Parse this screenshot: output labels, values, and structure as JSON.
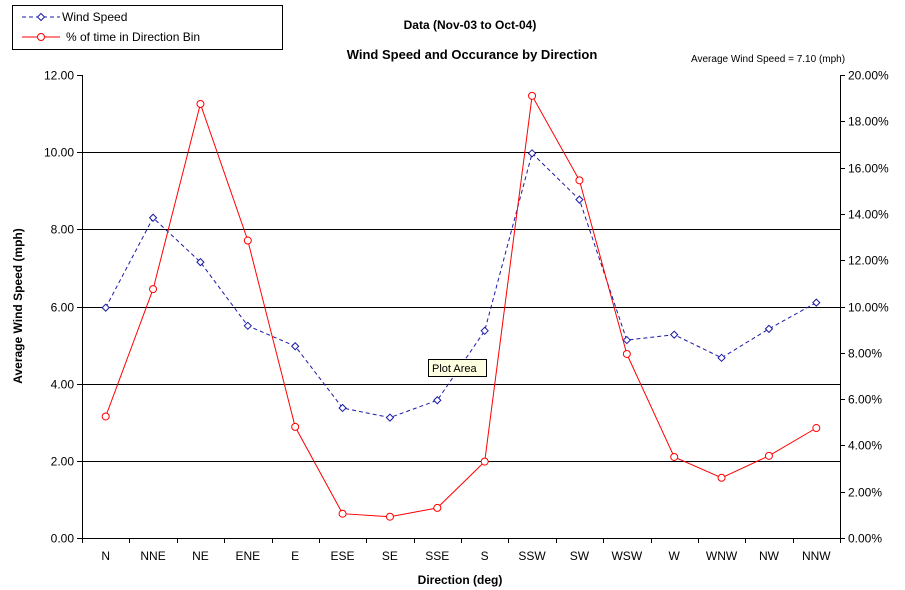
{
  "chart_data": {
    "type": "line",
    "title": "Wind Speed and Occurance by Direction",
    "subtitle": "Data (Nov-03 to Oct-04)",
    "annotation": "Average Wind Speed = 7.10 (mph)",
    "tooltip": "Plot Area",
    "xlabel": "Direction (deg)",
    "ylabel": "Average Wind Speed (mph)",
    "categories": [
      "N",
      "NNE",
      "NE",
      "ENE",
      "E",
      "ESE",
      "SE",
      "SSE",
      "S",
      "SSW",
      "SW",
      "WSW",
      "W",
      "WNW",
      "NW",
      "NNW"
    ],
    "ylim": [
      0,
      12
    ],
    "y_ticks": [
      "0.00",
      "2.00",
      "4.00",
      "6.00",
      "8.00",
      "10.00",
      "12.00"
    ],
    "y2lim": [
      0,
      20
    ],
    "y2_ticks": [
      "0.00%",
      "2.00%",
      "4.00%",
      "6.00%",
      "8.00%",
      "10.00%",
      "12.00%",
      "14.00%",
      "16.00%",
      "18.00%",
      "20.00%"
    ],
    "grid": true,
    "legend_position": "top-left",
    "series": [
      {
        "name": "Wind Speed",
        "axis": "left",
        "color": "#1a1aa6",
        "line_style": "dashed",
        "marker": "diamond",
        "values": [
          5.97,
          8.3,
          7.15,
          5.5,
          4.97,
          3.37,
          3.12,
          3.57,
          5.37,
          9.97,
          8.77,
          5.13,
          5.27,
          4.67,
          5.42,
          6.1
        ]
      },
      {
        "name": "% of time in Direction Bin",
        "axis": "right",
        "color": "#ff0000",
        "line_style": "solid",
        "marker": "circle",
        "values": [
          5.25,
          10.75,
          18.75,
          12.85,
          4.8,
          1.05,
          0.92,
          1.3,
          3.3,
          19.1,
          15.45,
          7.95,
          3.5,
          2.6,
          3.55,
          4.75
        ]
      }
    ]
  }
}
